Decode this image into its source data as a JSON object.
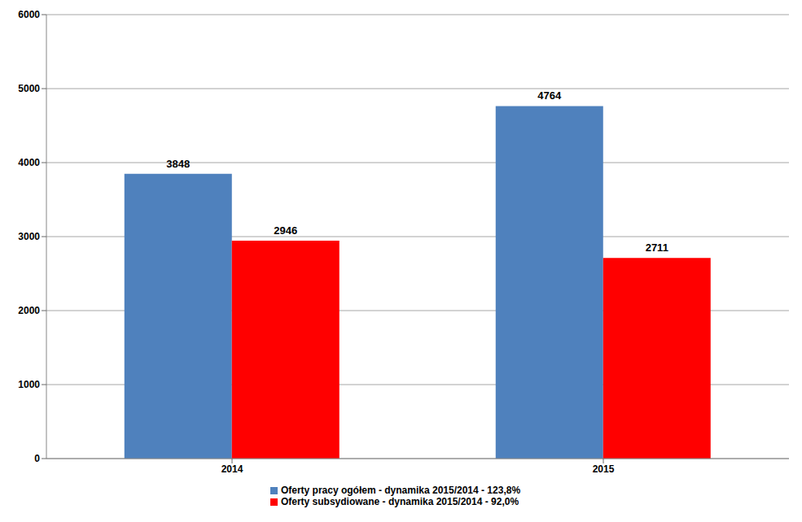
{
  "chart_data": {
    "type": "bar",
    "categories": [
      "2014",
      "2015"
    ],
    "series": [
      {
        "name": "Oferty pracy ogółem - dynamika 2015/2014 - 123,8%",
        "color": "#4f81bd",
        "values": [
          3848,
          4764
        ]
      },
      {
        "name": "Oferty subsydiowane - dynamika 2015/2014 - 92,0%",
        "color": "#ff0000",
        "values": [
          2946,
          2711
        ]
      }
    ],
    "ylim": [
      0,
      6000
    ],
    "yticks": [
      0,
      1000,
      2000,
      3000,
      4000,
      5000,
      6000
    ],
    "grid": true,
    "legend": "bottom",
    "data_labels": true
  }
}
